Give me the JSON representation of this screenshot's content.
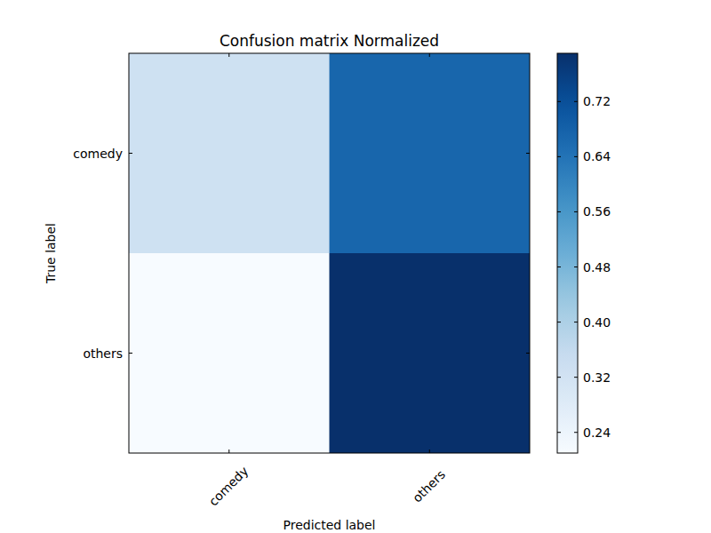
{
  "chart_data": {
    "type": "heatmap",
    "title": "Confusion matrix Normalized",
    "x_label": "Predicted label",
    "y_label": "True label",
    "x_categories": [
      "comedy",
      "others"
    ],
    "y_categories": [
      "comedy",
      "others"
    ],
    "cells": [
      [
        0.33,
        0.67
      ],
      [
        0.21,
        0.79
      ]
    ],
    "colorbar_lim": [
      0.21,
      0.79
    ],
    "colorbar_ticks": [
      0.24,
      0.32,
      {
        "value": 0.4,
        "label": "0.40"
      },
      0.48,
      0.56,
      0.64,
      0.72
    ]
  }
}
